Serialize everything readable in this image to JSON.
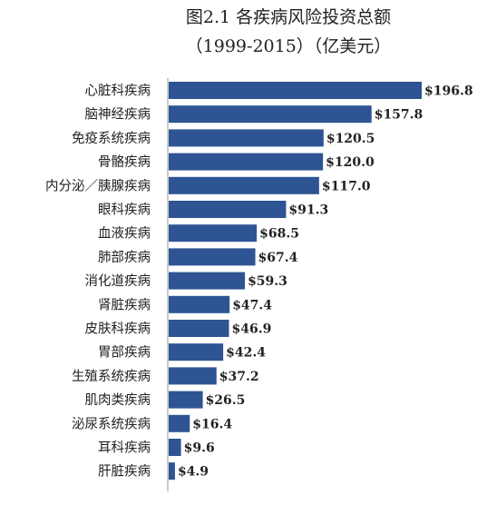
{
  "chart_data": {
    "type": "bar",
    "orientation": "horizontal",
    "title": "图2.1 各疾病风险投资总额",
    "subtitle": "（1999-2015）（亿美元）",
    "categories": [
      "心脏科疾病",
      "脑神经疾病",
      "免疫系统疾病",
      "骨骼疾病",
      "内分泌／胰腺疾病",
      "眼科疾病",
      "血液疾病",
      "肺部疾病",
      "消化道疾病",
      "肾脏疾病",
      "皮肤科疾病",
      "胃部疾病",
      "生殖系统疾病",
      "肌肉类疾病",
      "泌尿系统疾病",
      "耳科疾病",
      "肝脏疾病"
    ],
    "values": [
      196.8,
      157.8,
      120.5,
      120.0,
      117.0,
      91.3,
      68.5,
      67.4,
      59.3,
      47.4,
      46.9,
      42.4,
      37.2,
      26.5,
      16.4,
      9.6,
      4.9
    ],
    "data_labels": [
      "$196.8",
      "$157.8",
      "$120.5",
      "$120.0",
      "$117.0",
      "$91.3",
      "$68.5",
      "$67.4",
      "$59.3",
      "$47.4",
      "$46.9",
      "$42.4",
      "$37.2",
      "$26.5",
      "$16.4",
      "$9.6",
      "$4.9"
    ],
    "xlabel": "",
    "ylabel": "",
    "xlim": [
      0,
      196.8
    ],
    "grid": false,
    "legend": "none",
    "bar_color": "#2e5493"
  }
}
